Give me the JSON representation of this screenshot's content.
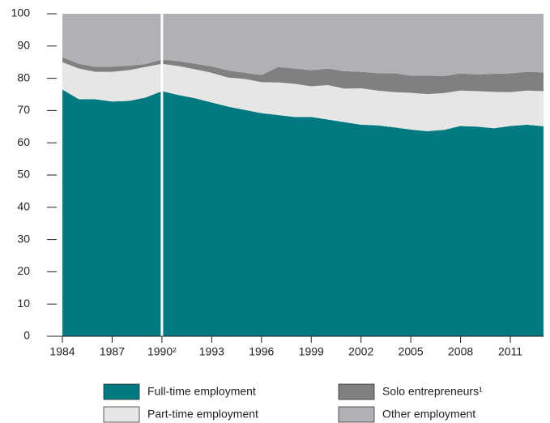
{
  "chart_data": {
    "type": "stacked_area",
    "x": [
      1984,
      1985,
      1986,
      1987,
      1988,
      1989,
      1990,
      1991,
      1992,
      1993,
      1994,
      1995,
      1996,
      1997,
      1998,
      1999,
      2000,
      2001,
      2002,
      2003,
      2004,
      2005,
      2006,
      2007,
      2008,
      2009,
      2010,
      2011,
      2012,
      2013
    ],
    "series": [
      {
        "name": "Full-time employment",
        "color": "#007a80",
        "values": [
          76.5,
          73.5,
          73.5,
          72.8,
          73,
          74,
          76,
          74.8,
          73.8,
          72.5,
          71.2,
          70.2,
          69.2,
          68.6,
          68,
          68,
          67.2,
          66.4,
          65.6,
          65.4,
          64.8,
          64.1,
          63.6,
          64,
          65.2,
          65,
          64.5,
          65.2,
          65.6,
          65.1
        ]
      },
      {
        "name": "Part-time employment",
        "color": "#e6e6e6",
        "values": [
          8.5,
          9.5,
          8.5,
          9.2,
          9.5,
          9.5,
          8.5,
          9,
          9,
          9.2,
          9,
          9.6,
          9.6,
          10.1,
          10.3,
          9.5,
          10.7,
          10.4,
          11.3,
          10.8,
          10.9,
          11.4,
          11.5,
          11.4,
          11,
          11,
          11.3,
          10.5,
          10.6,
          10.9
        ]
      },
      {
        "name": "Solo entrepreneurs¹",
        "color": "#808080",
        "values": [
          1.5,
          1.5,
          1.5,
          1.6,
          1.4,
          0.9,
          1.3,
          1.5,
          1.7,
          2,
          2.2,
          1.9,
          2.2,
          4.8,
          4.7,
          5,
          5.1,
          5.4,
          5.1,
          5.4,
          5.9,
          5.3,
          5.7,
          5.3,
          5.3,
          5.2,
          5.6,
          5.8,
          5.8,
          5.8
        ]
      },
      {
        "name": "Other employment",
        "color": "#b1b1b5",
        "values": [
          13.5,
          15.5,
          16.5,
          16.4,
          16.1,
          15.6,
          14.2,
          14.7,
          15.5,
          16.3,
          17.6,
          18.3,
          19,
          16.5,
          17,
          17.5,
          17,
          17.8,
          18,
          18.4,
          18.4,
          19.2,
          19.2,
          19.3,
          18.5,
          18.8,
          18.6,
          18.5,
          18,
          18.2
        ]
      }
    ],
    "break": 1990,
    "xlim": [
      1984,
      2013
    ],
    "xticks": [
      1984,
      1987,
      {
        "value": 1990,
        "label": "1990²"
      },
      1993,
      1996,
      1999,
      2002,
      2005,
      2008,
      2011
    ],
    "ylim": [
      0,
      100
    ],
    "yticks": [
      0,
      10,
      20,
      30,
      40,
      50,
      60,
      70,
      80,
      90,
      100
    ],
    "legend": "bottom"
  }
}
